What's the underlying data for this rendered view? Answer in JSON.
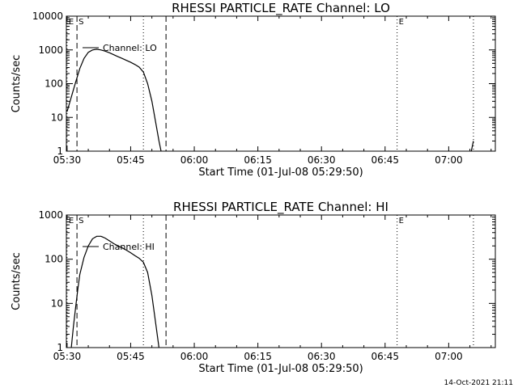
{
  "footer": {
    "timestamp": "14-Oct-2021 21:11"
  },
  "chart_data": [
    {
      "type": "line",
      "title": "RHESSI PARTICLE_RATE Channel: LO",
      "xlabel": "Start Time (01-Jul-08 05:29:50)",
      "ylabel": "Counts/sec",
      "yscale": "log",
      "xlim": [
        "05:29:50",
        "07:11:00"
      ],
      "ylim": [
        1,
        10000
      ],
      "xticks": [
        "05:30",
        "05:45",
        "06:00",
        "06:15",
        "06:30",
        "06:45",
        "07:00"
      ],
      "yticks": [
        "1",
        "10",
        "100",
        "1000",
        "10000"
      ],
      "legend": {
        "placement": "top-left",
        "entries": [
          "Channel: LO"
        ]
      },
      "markers": [
        {
          "label": "E",
          "time": "05:30:00",
          "style": "dotted"
        },
        {
          "label": "S",
          "time": "05:32:20",
          "style": "dashed"
        },
        {
          "label": "",
          "time": "05:48:00",
          "style": "dotted"
        },
        {
          "label": "",
          "time": "05:53:20",
          "style": "dashed"
        },
        {
          "label": "E",
          "time": "06:47:50",
          "style": "dotted"
        },
        {
          "label": "",
          "time": "07:05:50",
          "style": "dotted"
        }
      ],
      "series": [
        {
          "name": "Channel: LO",
          "x": [
            "05:30:00",
            "05:31:00",
            "05:32:00",
            "05:33:00",
            "05:34:00",
            "05:35:00",
            "05:36:00",
            "05:37:00",
            "05:38:00",
            "05:39:00",
            "05:40:00",
            "05:41:00",
            "05:42:00",
            "05:43:00",
            "05:44:00",
            "05:45:00",
            "05:46:00",
            "05:47:00",
            "05:48:00",
            "05:49:00",
            "05:50:00",
            "05:51:00",
            "05:51:40",
            "05:52:10"
          ],
          "values": [
            15,
            40,
            110,
            280,
            560,
            850,
            1000,
            1050,
            1000,
            920,
            820,
            720,
            630,
            560,
            490,
            430,
            370,
            310,
            220,
            100,
            30,
            6,
            2,
            1
          ]
        },
        {
          "name": "",
          "x": [
            "07:05:20",
            "07:05:50"
          ],
          "values": [
            1,
            2
          ]
        }
      ]
    },
    {
      "type": "line",
      "title": "RHESSI PARTICLE_RATE Channel: HI",
      "xlabel": "Start Time (01-Jul-08 05:29:50)",
      "ylabel": "Counts/sec",
      "yscale": "log",
      "xlim": [
        "05:29:50",
        "07:11:00"
      ],
      "ylim": [
        1,
        1000
      ],
      "xticks": [
        "05:30",
        "05:45",
        "06:00",
        "06:15",
        "06:30",
        "06:45",
        "07:00"
      ],
      "yticks": [
        "1",
        "10",
        "100",
        "1000"
      ],
      "legend": {
        "placement": "top-left",
        "entries": [
          "Channel: HI"
        ]
      },
      "markers": [
        {
          "label": "E",
          "time": "05:30:00",
          "style": "dotted"
        },
        {
          "label": "S",
          "time": "05:32:20",
          "style": "dashed"
        },
        {
          "label": "",
          "time": "05:48:00",
          "style": "dotted"
        },
        {
          "label": "",
          "time": "05:53:20",
          "style": "dashed"
        },
        {
          "label": "E",
          "time": "06:47:50",
          "style": "dotted"
        },
        {
          "label": "",
          "time": "07:05:50",
          "style": "dotted"
        }
      ],
      "series": [
        {
          "name": "Channel: HI",
          "x": [
            "05:31:00",
            "05:31:30",
            "05:32:00",
            "05:32:30",
            "05:33:00",
            "05:34:00",
            "05:35:00",
            "05:36:00",
            "05:37:00",
            "05:38:00",
            "05:39:00",
            "05:40:00",
            "05:41:00",
            "05:42:00",
            "05:43:00",
            "05:44:00",
            "05:45:00",
            "05:46:00",
            "05:47:00",
            "05:48:00",
            "05:49:00",
            "05:50:00",
            "05:51:00",
            "05:51:40"
          ],
          "values": [
            1,
            3,
            8,
            20,
            45,
            110,
            200,
            290,
            330,
            330,
            300,
            260,
            225,
            200,
            180,
            160,
            140,
            120,
            105,
            85,
            50,
            15,
            3,
            1
          ]
        }
      ]
    }
  ]
}
